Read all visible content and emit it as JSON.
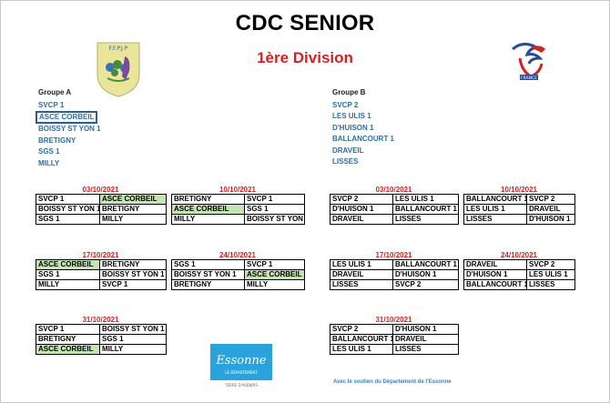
{
  "title": "CDC SENIOR",
  "subtitle": "1ère Division",
  "logos": {
    "left": "ffpjp-logo",
    "left_text": "F.F.P.J.P",
    "right": "france-petanque-logo",
    "right_text": "FRANCE",
    "bottom": "essonne-logo",
    "bottom_text": "Essonne",
    "bottom_sub": "LE DÉPARTEMENT",
    "bottom_tag": "TERRE D'AVENIRS"
  },
  "group_a": {
    "title": "Groupe A",
    "teams": [
      "SVCP 1",
      "ASCE CORBEIL",
      "BOISSY ST YON 1",
      "BRETIGNY",
      "SGS 1",
      "MILLY"
    ]
  },
  "group_b": {
    "title": "Groupe B",
    "teams": [
      "SVCP 2",
      "LES ULIS 1",
      "D'HUISON 1",
      "BALLANCOURT 1",
      "DRAVEIL",
      "LISSES"
    ]
  },
  "rounds": {
    "a1": {
      "date": "03/10/2021",
      "rows": [
        [
          "SVCP 1",
          "ASCE CORBEIL"
        ],
        [
          "BOISSY ST YON 1",
          "BRETIGNY"
        ],
        [
          "SGS 1",
          "MILLY"
        ]
      ]
    },
    "a2": {
      "date": "10/10/2021",
      "rows": [
        [
          "BRETIGNY",
          "SVCP 1"
        ],
        [
          "ASCE CORBEIL",
          "SGS 1"
        ],
        [
          "MILLY",
          "BOISSY ST YON 1"
        ]
      ]
    },
    "a3": {
      "date": "17/10/2021",
      "rows": [
        [
          "ASCE CORBEIL",
          "BRETIGNY"
        ],
        [
          "SGS 1",
          "BOISSY ST YON 1"
        ],
        [
          "MILLY",
          "SVCP 1"
        ]
      ]
    },
    "a4": {
      "date": "24/10/2021",
      "rows": [
        [
          "SGS 1",
          "SVCP 1"
        ],
        [
          "BOISSY ST YON 1",
          "ASCE CORBEIL"
        ],
        [
          "BRETIGNY",
          "MILLY"
        ]
      ]
    },
    "a5": {
      "date": "31/10/2021",
      "rows": [
        [
          "SVCP 1",
          "BOISSY ST YON 1"
        ],
        [
          "BRETIGNY",
          "SGS 1"
        ],
        [
          "ASCE CORBEIL",
          "MILLY"
        ]
      ]
    },
    "b1": {
      "date": "03/10/2021",
      "rows": [
        [
          "SVCP 2",
          "LES ULIS 1"
        ],
        [
          "D'HUISON 1",
          "BALLANCOURT 1"
        ],
        [
          "DRAVEIL",
          "LISSES"
        ]
      ]
    },
    "b2": {
      "date": "10/10/2021",
      "rows": [
        [
          "BALLANCOURT 1",
          "SVCP 2"
        ],
        [
          "LES ULIS 1",
          "DRAVEIL"
        ],
        [
          "LISSES",
          "D'HUISON 1"
        ]
      ]
    },
    "b3": {
      "date": "17/10/2021",
      "rows": [
        [
          "LES ULIS 1",
          "BALLANCOURT 1"
        ],
        [
          "DRAVEIL",
          "D'HUISON 1"
        ],
        [
          "LISSES",
          "SVCP 2"
        ]
      ]
    },
    "b4": {
      "date": "24/10/2021",
      "rows": [
        [
          "DRAVEIL",
          "SVCP 2"
        ],
        [
          "D'HUISON 1",
          "LES ULIS 1"
        ],
        [
          "BALLANCOURT 1",
          "LISSES"
        ]
      ]
    },
    "b5": {
      "date": "31/10/2021",
      "rows": [
        [
          "SVCP 2",
          "D'HUISON 1"
        ],
        [
          "BALLANCOURT 1",
          "DRAVEIL"
        ],
        [
          "LES ULIS 1",
          "LISSES"
        ]
      ]
    }
  },
  "highlight_team": "ASCE CORBEIL",
  "highlight_color": "#c6e3b3",
  "date_color": "#d42020",
  "team_color": "#2e6ea6",
  "footer": "Avec le soutien du Département de l'Essonne"
}
